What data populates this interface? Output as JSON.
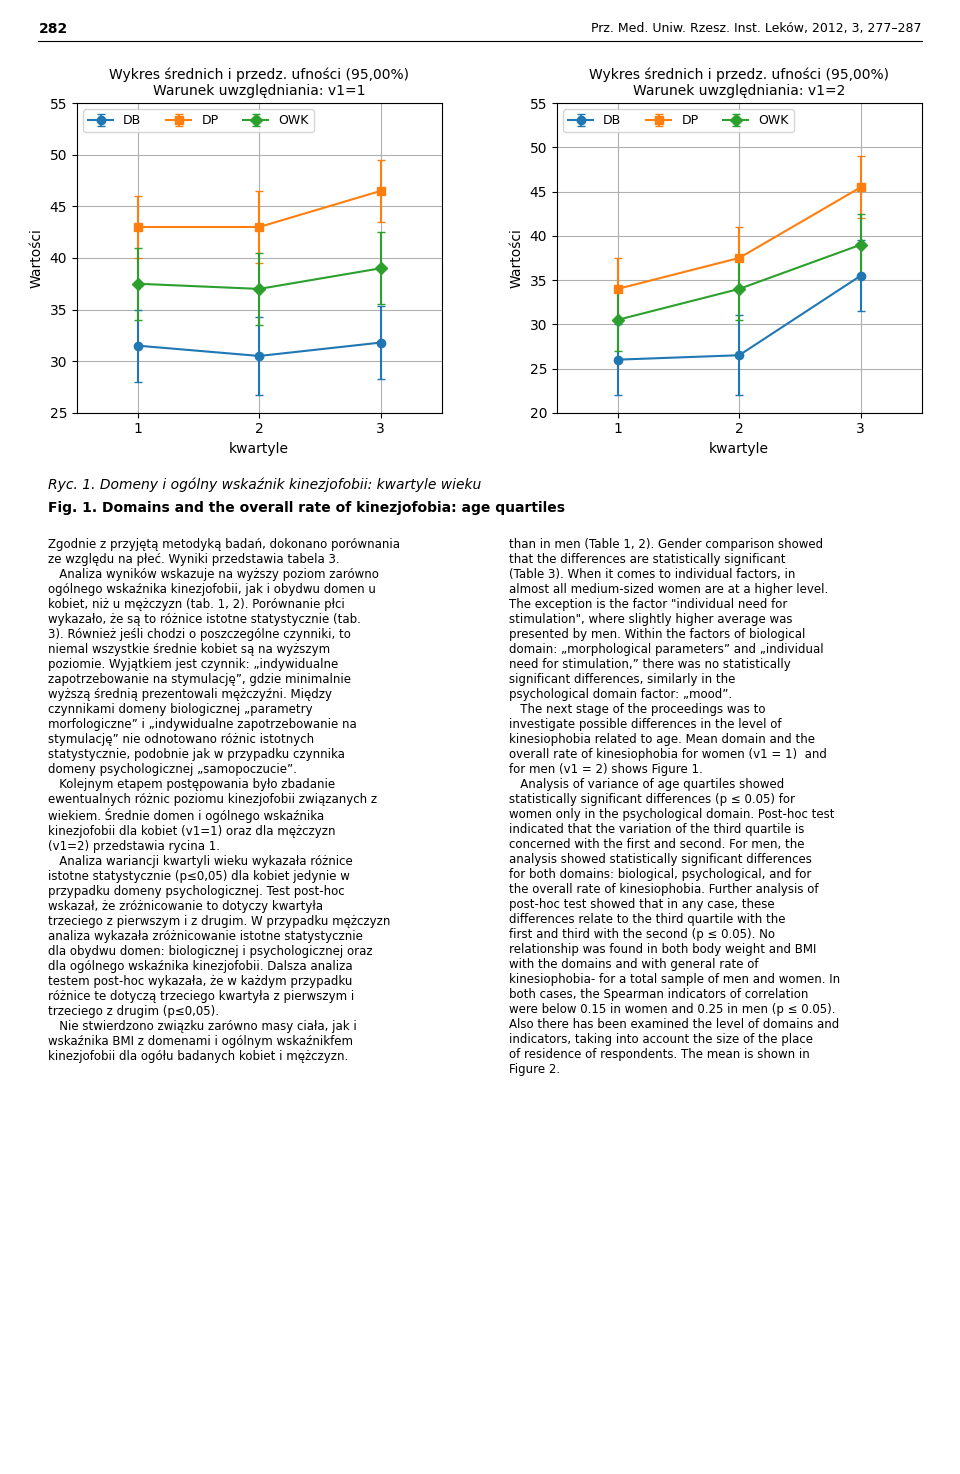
{
  "chart_data": [
    {
      "type": "line",
      "title": "Wykres średnich i przedz. ufności (95,00%)",
      "subtitle": "Warunek uwzględniania: v1=1",
      "xlabel": "kwartyle",
      "ylabel": "Wartości",
      "x": [
        1,
        2,
        3
      ],
      "xlim": [
        0.5,
        3.5
      ],
      "xticks": [
        1,
        2,
        3
      ],
      "ylim": [
        25,
        55
      ],
      "yticks": [
        25,
        30,
        35,
        40,
        45,
        50,
        55
      ],
      "grid": true,
      "legend": "upper left",
      "series": [
        {
          "name": "DB",
          "values": [
            31.5,
            30.5,
            31.8
          ],
          "yerr_low": [
            3.5,
            3.8,
            3.5
          ],
          "yerr_high": [
            3.5,
            3.8,
            3.5
          ],
          "marker": "circle",
          "line_style": "solid"
        },
        {
          "name": "DP",
          "values": [
            43.0,
            43.0,
            46.5
          ],
          "yerr_low": [
            3.0,
            3.5,
            3.0
          ],
          "yerr_high": [
            3.0,
            3.5,
            3.0
          ],
          "marker": "square",
          "line_style": "solid"
        },
        {
          "name": "OWK",
          "values": [
            37.5,
            37.0,
            39.0
          ],
          "yerr_low": [
            3.5,
            3.5,
            3.5
          ],
          "yerr_high": [
            3.5,
            3.5,
            3.5
          ],
          "marker": "diamond",
          "line_style": "solid"
        }
      ]
    },
    {
      "type": "line",
      "title": "Wykres średnich i przedz. ufności (95,00%)",
      "subtitle": "Warunek uwzględniania: v1=2",
      "xlabel": "kwartyle",
      "ylabel": "Wartości",
      "x": [
        1,
        2,
        3
      ],
      "xlim": [
        0.5,
        3.5
      ],
      "xticks": [
        1,
        2,
        3
      ],
      "ylim": [
        20,
        55
      ],
      "yticks": [
        20,
        25,
        30,
        35,
        40,
        45,
        50,
        55
      ],
      "grid": true,
      "legend": "upper left",
      "series": [
        {
          "name": "DB",
          "values": [
            26.0,
            26.5,
            35.5
          ],
          "yerr_low": [
            4.0,
            4.5,
            4.0
          ],
          "yerr_high": [
            4.0,
            4.5,
            4.0
          ],
          "marker": "circle",
          "line_style": "solid"
        },
        {
          "name": "DP",
          "values": [
            34.0,
            37.5,
            45.5
          ],
          "yerr_low": [
            3.5,
            3.5,
            3.5
          ],
          "yerr_high": [
            3.5,
            3.5,
            3.5
          ],
          "marker": "square",
          "line_style": "solid"
        },
        {
          "name": "OWK",
          "values": [
            30.5,
            34.0,
            39.0
          ],
          "yerr_low": [
            3.5,
            3.5,
            3.5
          ],
          "yerr_high": [
            3.5,
            3.5,
            3.5
          ],
          "marker": "diamond",
          "line_style": "solid"
        }
      ]
    }
  ],
  "annotations": [
    "282",
    "Prz. Med. Uniw. Rzesz. Inst. Leków, 2012, 3, 277–287",
    "Ryc. 1. Domeny i ogólny wskaźnik kinezjofobii: kwartyle wieku",
    "Fig. 1. Domains and the overall rate of kinezjofobia: age quartiles",
    "Zgodnie z przyjętą metodyką badań, dokonano porównania ze względu na płeć. Wyniki przedstawia tabela 3.\n   Analiza wyników wskazuje na wyższy poziom zarówno ogólnego wskaźnika kinezjofobii, jak i obydwu domen u kobiet, niż u mężczyzn (tab. 1, 2). Porównanie płci wykazało, że są to różnice istotne statystycznie (tab. 3). Również jeśli chodzi o poszczególne czynniki, to niemal wszystkie średnie kobiet są na wyższym poziomie. Wyjątkiem jest czynnik: „indywidualne zapotrzebowanie na stymulację”, gdzie minimalnie wyższą średnią prezentowali mężczyźni. Między czynnikami domeny biologicznej „parametry morfologiczne” i „indywidualne zapotrzebowanie na stymulację” nie odnotowano różnic istotnych statystycznie, podobnie jak w przypadku czynnika domeny psychologicznej „samopoczucie”.\n   Kolejnym etapem postępowania było zbadanie ewentualnych różnic poziomu kinezjofobii związanych z wiekiem. Średnie domen i ogólnego wskaźnika kinezjofobii dla kobiet (v1=1) oraz dla mężczyzn (v1=2) przedstawia rycina 1.\n   Analiza wariancji kwartyli wieku wykazała różnice istotne statystycznie (p≤0,05) dla kobiet jedynie w przypadku domeny psychologicznej. Test post-hoc wskazał, że zróżnicowanie to dotyczy kwartyła trzeciego z pierwszym i z drugim. W przypadku mężczyzn analiza wykazała zróżnicowanie istotne statystycznie dla obydwu domen: biologicznej i psychologicznej oraz dla ogólnego wskaźnika kinezjofobii. Dalsza analiza testem post-hoc wykazała, że w każdym przypadku różnice te dotyczą trzeciego kwartyła z pierwszym i trzeciego z drugim (p≤0,05).\n   Nie stwierdzono związku zarówno masy ciała, jak i wskaźnika BMI z domenami i ogólnym wskaźnikfem kinezjofobii dla ogółu badanych kobiet i mężczyzn.",
    "than in men (Table 1, 2). Gender comparison showed that the differences are statistically significant (Table 3). When it comes to individual factors, in almost all medium-sized women are at a higher level. The exception is the factor \"individual need for stimulation\", where slightly higher average was presented by men. Within the factors of biological domain: „morphological parameters” and „individual need for stimulation,” there was no statistically significant differences, similarly in the psychological domain factor: „mood”.\n   The next stage of the proceedings was to investigate possible differences in the level of kinesiophobia related to age. Mean domain and the overall rate of kinesiophobia for women (v1 = 1)  and for men (v1 = 2) shows Figure 1.\n   Analysis of variance of age quartiles showed statistically significant differences (p ≤ 0.05) for women only in the psychological domain. Post-hoc test indicated that the variation of the third quartile is concerned with the first and second. For men, the analysis showed statistically significant differences for both domains: biological, psychological, and for the overall rate of kinesiophobia. Further analysis of post-hoc test showed that in any case, these differences relate to the third quartile with the first and third with the second (p ≤ 0.05). No relationship was found in both body weight and BMI with the domains and with general rate of kinesiophobia- for a total sample of men and women. In both cases, the Spearman indicators of correlation were below 0.15 in women and 0.25 in men (p ≤ 0.05). Also there has been examined the level of domains and indicators, taking into account the size of the place of residence of respondents. The mean is shown in Figure 2."
  ]
}
